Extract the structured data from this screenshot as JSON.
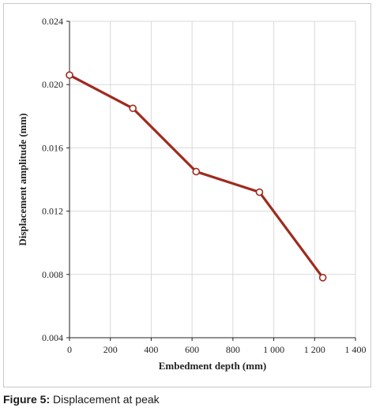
{
  "figure": {
    "caption_label": "Figure 5:",
    "caption_text": "Displacement at peak"
  },
  "chart_data": {
    "type": "line",
    "title": "",
    "xlabel": "Embedment depth (mm)",
    "ylabel": "Displacement amplitude (mm)",
    "xlim": [
      0,
      1400
    ],
    "ylim": [
      0.004,
      0.024
    ],
    "x_ticks": [
      0,
      200,
      400,
      600,
      800,
      1000,
      1200,
      1400
    ],
    "x_tick_labels": [
      "0",
      "200",
      "400",
      "600",
      "800",
      "1 000",
      "1 200",
      "1 400"
    ],
    "y_ticks": [
      0.004,
      0.008,
      0.012,
      0.016,
      0.02,
      0.024
    ],
    "y_tick_labels": [
      "0.004",
      "0.008",
      "0.012",
      "0.016",
      "0.020",
      "0.024"
    ],
    "grid": true,
    "legend": "none",
    "series": [
      {
        "color": "#9e2b1e",
        "marker": "open-circle",
        "x": [
          0,
          310,
          620,
          930,
          1240
        ],
        "y": [
          0.0206,
          0.0185,
          0.0145,
          0.0132,
          0.0078
        ]
      }
    ]
  }
}
